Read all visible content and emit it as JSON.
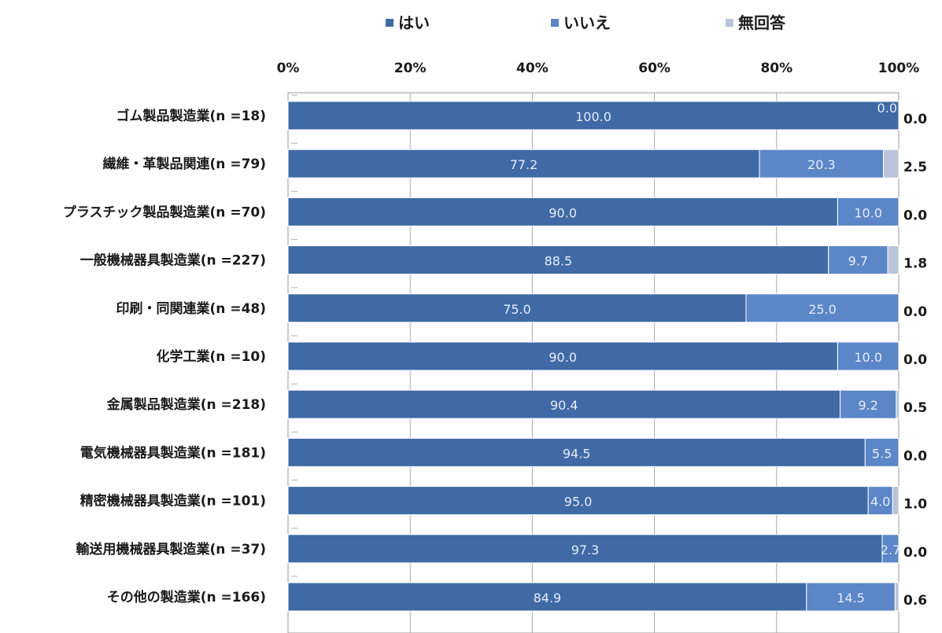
{
  "chart_data": {
    "type": "bar",
    "orientation": "horizontal",
    "stacked": true,
    "percent_stacked": true,
    "categories": [
      "ゴム製品製造業(n =18)",
      "繊維・革製品関連(n =79)",
      "プラスチック製品製造業(n =70)",
      "一般機械器具製造業(n =227)",
      "印刷・同関連業(n =48)",
      "化学工業(n =10)",
      "金属製品製造業(n =218)",
      "電気機械器具製造業(n =181)",
      "精密機械器具製造業(n =101)",
      "輸送用機械器具製造業(n =37)",
      "その他の製造業(n =166)"
    ],
    "series": [
      {
        "name": "はい",
        "color": "#3f6aa6",
        "values": [
          100.0,
          77.2,
          90.0,
          88.5,
          75.0,
          90.0,
          90.4,
          94.5,
          95.0,
          97.3,
          84.9
        ],
        "labels": [
          "100.0",
          "77.2",
          "90.0",
          "88.5",
          "75.0",
          "90.0",
          "90.4",
          "94.5",
          "95.0",
          "97.3",
          "84.9"
        ]
      },
      {
        "name": "いいえ",
        "color": "#5b86c8",
        "values": [
          0.0,
          20.3,
          10.0,
          9.7,
          25.0,
          10.0,
          9.2,
          5.5,
          4.0,
          2.7,
          14.5
        ],
        "labels": [
          "0.0",
          "20.3",
          "10.0",
          "9.7",
          "25.0",
          "10.0",
          "9.2",
          "5.5",
          "4.0",
          "2.7",
          "14.5"
        ]
      },
      {
        "name": "無回答",
        "color": "#b9c4da",
        "values": [
          0.0,
          2.5,
          0.0,
          1.8,
          0.0,
          0.0,
          0.5,
          0.0,
          1.0,
          0.0,
          0.6
        ],
        "labels": [
          "0.0",
          "2.5",
          "0.0",
          "1.8",
          "0.0",
          "0.0",
          "0.5",
          "0.0",
          "1.0",
          "0.0",
          "0.6"
        ]
      }
    ],
    "x_ticks": [
      "0%",
      "20%",
      "40%",
      "60%",
      "80%",
      "100%"
    ],
    "xlim": [
      0,
      100
    ],
    "legend_position": "top",
    "grid": true
  }
}
